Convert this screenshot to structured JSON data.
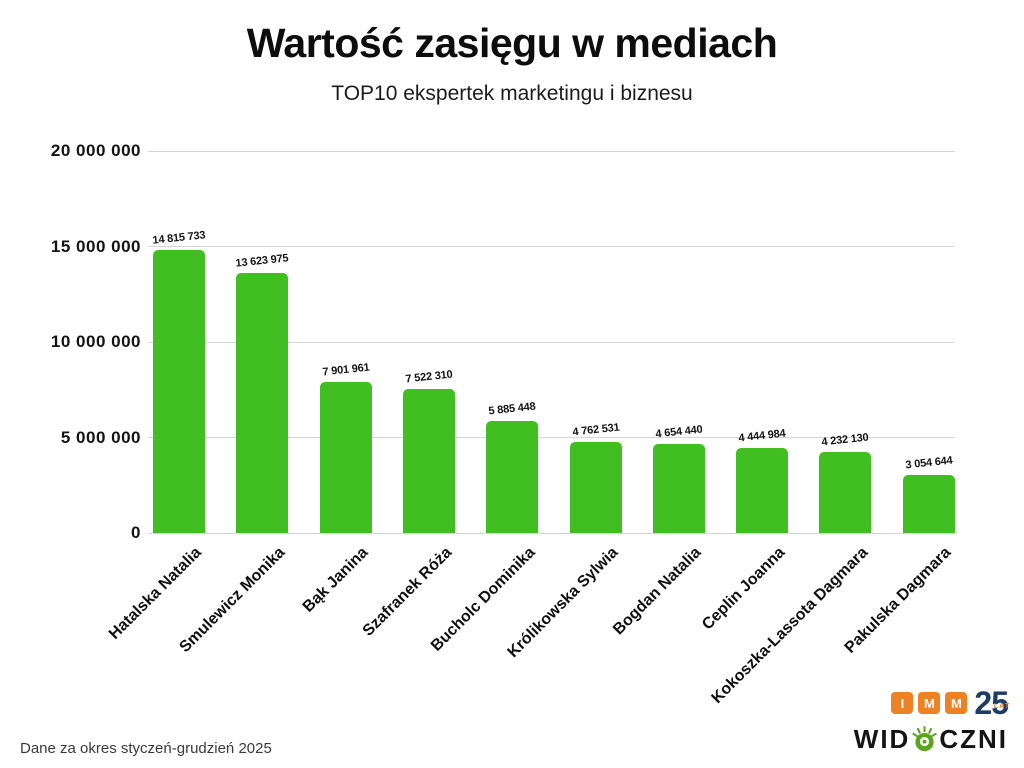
{
  "footer": {
    "note": "Dane za okres styczeń-grudzień 2025"
  },
  "logos": {
    "imm": {
      "letters": [
        "I",
        "M",
        "M"
      ],
      "years": "25",
      "years_suffix": "LAT",
      "orange": "#ee8124",
      "navy": "#1e3c64"
    },
    "widoczni": {
      "prefix": "WID",
      "suffix": "CZNI",
      "icon": "eye-icon",
      "green": "#5aa51e"
    }
  },
  "chart_data": {
    "type": "bar",
    "title": "Wartość zasięgu w mediach",
    "subtitle": "TOP10 ekspertek marketingu i biznesu",
    "categories": [
      "Hatalska Natalia",
      "Smulewicz Monika",
      "Bąk Janina",
      "Szafranek Róża",
      "Bucholc Dominika",
      "Królikowska Sylwia",
      "Bogdan Natalia",
      "Ceplin Joanna",
      "Kokoszka-Lassota Dagmara",
      "Pakulska Dagmara"
    ],
    "values": [
      14815733,
      13623975,
      7901961,
      7522310,
      5885448,
      4762531,
      4654440,
      4444984,
      4232130,
      3054644
    ],
    "xlabel": "",
    "ylabel": "",
    "ylim": [
      0,
      20000000
    ],
    "yticks": [
      0,
      5000000,
      10000000,
      15000000,
      20000000
    ],
    "grid": true,
    "legend": false,
    "bar_color": "#41be21",
    "gridline_color": "#d5d5d5"
  }
}
